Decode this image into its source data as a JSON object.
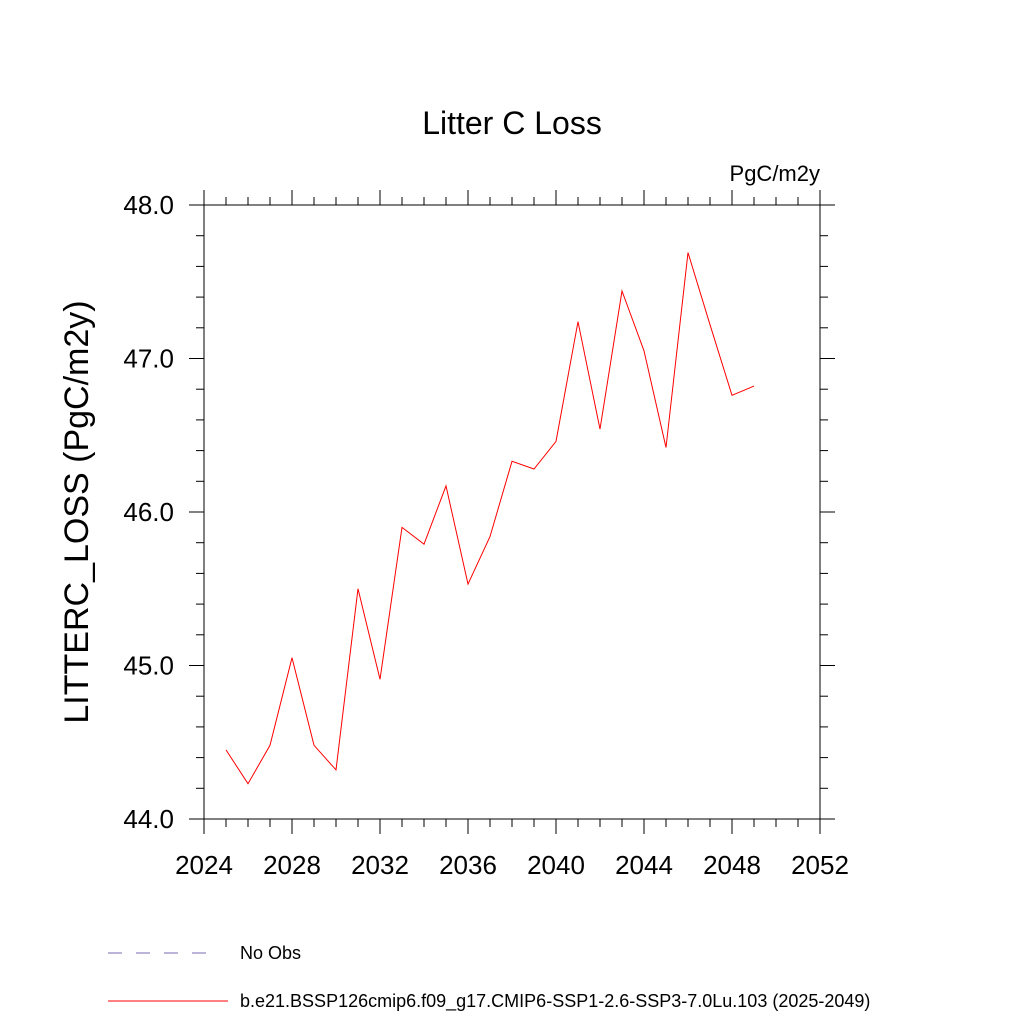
{
  "chart_data": {
    "type": "line",
    "title": "Litter C Loss",
    "units": "PgC/m2y",
    "xlabel": "",
    "ylabel": "LITTERC_LOSS  (PgC/m2y)",
    "xlim": [
      2024,
      2052
    ],
    "ylim": [
      44.0,
      48.0
    ],
    "x_ticks": [
      2024,
      2028,
      2032,
      2036,
      2040,
      2044,
      2048,
      2052
    ],
    "x_tick_labels": [
      "2024",
      "2028",
      "2032",
      "2036",
      "2040",
      "2044",
      "2048",
      "2052"
    ],
    "x_minor_step": 1,
    "y_ticks": [
      44.0,
      45.0,
      46.0,
      47.0,
      48.0
    ],
    "y_tick_labels": [
      "44.0",
      "45.0",
      "46.0",
      "47.0",
      "48.0"
    ],
    "y_minor_step": 0.2,
    "grid": false,
    "legend_position": "bottom",
    "legend": [
      {
        "label": "No Obs",
        "color": "#7b68b5",
        "dash": "dashed"
      },
      {
        "label": "b.e21.BSSP126cmip6.f09_g17.CMIP6-SSP1-2.6-SSP3-7.0Lu.103 (2025-2049)",
        "color": "#ff0000",
        "dash": "solid"
      }
    ],
    "series": [
      {
        "name": "b.e21.BSSP126cmip6.f09_g17.CMIP6-SSP1-2.6-SSP3-7.0Lu.103 (2025-2049)",
        "color": "#ff0000",
        "x": [
          2025,
          2026,
          2027,
          2028,
          2029,
          2030,
          2031,
          2032,
          2033,
          2034,
          2035,
          2036,
          2037,
          2038,
          2039,
          2040,
          2041,
          2042,
          2043,
          2044,
          2045,
          2046,
          2047,
          2048,
          2049
        ],
        "y": [
          44.45,
          44.23,
          44.48,
          45.05,
          44.48,
          44.32,
          45.5,
          44.91,
          45.9,
          45.79,
          46.17,
          45.53,
          45.84,
          46.33,
          46.28,
          46.46,
          47.24,
          46.54,
          47.44,
          47.05,
          46.42,
          47.69,
          47.22,
          46.76,
          46.82
        ]
      }
    ]
  }
}
